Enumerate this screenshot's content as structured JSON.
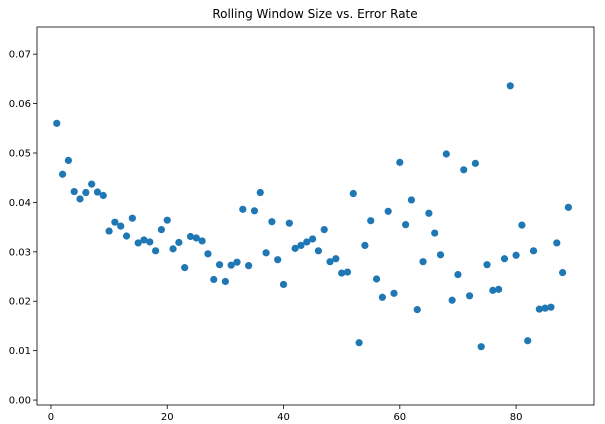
{
  "chart_data": {
    "type": "scatter",
    "title": "Rolling Window Size vs. Error Rate",
    "xlabel": "",
    "ylabel": "",
    "xlim": [
      -2.4,
      93.4
    ],
    "ylim": [
      -0.001,
      0.0755
    ],
    "xticks": [
      0,
      20,
      40,
      60,
      80
    ],
    "yticks": [
      0.0,
      0.01,
      0.02,
      0.03,
      0.04,
      0.05,
      0.06,
      0.07
    ],
    "ytick_labels": [
      "0.00",
      "0.01",
      "0.02",
      "0.03",
      "0.04",
      "0.05",
      "0.06",
      "0.07"
    ],
    "grid": false,
    "marker_color": "#1f77b4",
    "x": [
      1,
      2,
      3,
      4,
      5,
      6,
      7,
      8,
      9,
      10,
      11,
      12,
      13,
      14,
      15,
      16,
      17,
      18,
      19,
      20,
      21,
      22,
      23,
      24,
      25,
      26,
      27,
      28,
      29,
      30,
      31,
      32,
      33,
      34,
      35,
      36,
      37,
      38,
      39,
      40,
      41,
      42,
      43,
      44,
      45,
      46,
      47,
      48,
      49,
      50,
      51,
      52,
      53,
      54,
      55,
      56,
      57,
      58,
      59,
      60,
      61,
      62,
      63,
      64,
      65,
      66,
      67,
      68,
      69,
      70,
      71,
      72,
      73,
      74,
      75,
      76,
      77,
      78,
      79,
      80,
      81,
      82,
      83,
      84,
      85,
      86,
      87,
      88,
      89
    ],
    "y": [
      0.056,
      0.0457,
      0.0485,
      0.0422,
      0.0407,
      0.042,
      0.0437,
      0.0421,
      0.0414,
      0.0342,
      0.036,
      0.0352,
      0.0332,
      0.0368,
      0.0318,
      0.0324,
      0.032,
      0.0302,
      0.0345,
      0.0364,
      0.0306,
      0.0319,
      0.0268,
      0.0331,
      0.0328,
      0.0322,
      0.0296,
      0.0244,
      0.0274,
      0.024,
      0.0273,
      0.0279,
      0.0386,
      0.0272,
      0.0383,
      0.042,
      0.0298,
      0.0361,
      0.0284,
      0.0234,
      0.0358,
      0.0307,
      0.0313,
      0.032,
      0.0326,
      0.0302,
      0.0345,
      0.028,
      0.0286,
      0.0257,
      0.0259,
      0.0418,
      0.0116,
      0.0313,
      0.0363,
      0.0245,
      0.0208,
      0.0382,
      0.0216,
      0.0481,
      0.0355,
      0.0405,
      0.0183,
      0.028,
      0.0378,
      0.0338,
      0.0294,
      0.0498,
      0.0202,
      0.0254,
      0.0466,
      0.0211,
      0.0479,
      0.0108,
      0.0274,
      0.0222,
      0.0224,
      0.0286,
      0.0636,
      0.0293,
      0.0354,
      0.012,
      0.0302,
      0.0184,
      0.0186,
      0.0188,
      0.0318,
      0.0258,
      0.039
    ]
  }
}
